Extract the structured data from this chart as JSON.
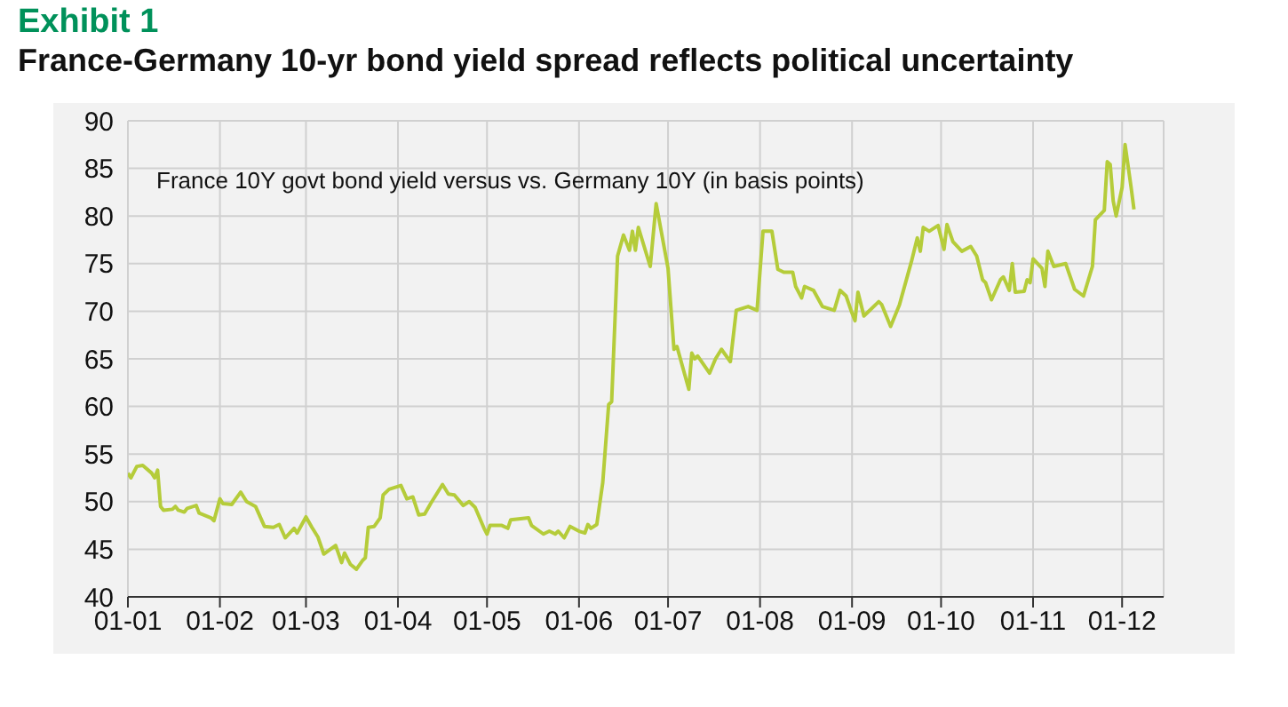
{
  "chart_data": {
    "type": "line",
    "title": "Exhibit 1",
    "subtitle": "France-Germany 10-yr bond yield spread reflects political uncertainty",
    "annotations": [
      "France 10Y govt bond yield versus vs. Germany 10Y (in basis points)"
    ],
    "x": [
      "--01-01",
      "--01-02",
      "--01-04",
      "--01-06",
      "--01-09",
      "--01-10",
      "--01-11",
      "--01-12",
      "--01-13",
      "--01-16",
      "--01-17",
      "--01-18",
      "--01-20",
      "--01-21",
      "--01-24",
      "--01-25",
      "--01-29",
      "--01-30",
      "--02-01",
      "--02-02",
      "--02-05",
      "--02-08",
      "--02-10",
      "--02-13",
      "--02-16",
      "--02-19",
      "--02-21",
      "--02-23",
      "--02-26",
      "--02-27",
      "--03-01",
      "--03-03",
      "--03-05",
      "--03-07",
      "--03-11",
      "--03-13",
      "--03-14",
      "--03-16",
      "--03-18",
      "--03-20",
      "--03-21",
      "--03-22",
      "--03-24",
      "--03-26",
      "--03-27",
      "--03-29",
      "--04-02",
      "--04-04",
      "--04-06",
      "--04-08",
      "--04-10",
      "--04-12",
      "--04-16",
      "--04-18",
      "--04-20",
      "--04-23",
      "--04-25",
      "--04-27",
      "--04-30",
      "--05-01",
      "--05-02",
      "--05-06",
      "--05-08",
      "--05-09",
      "--05-15",
      "--05-16",
      "--05-20",
      "--05-22",
      "--05-24",
      "--05-25",
      "--05-27",
      "--05-29",
      "--06-01",
      "--06-03",
      "--06-04",
      "--06-05",
      "--06-07",
      "--06-09",
      "--06-11",
      "--06-12",
      "--06-14",
      "--06-16",
      "--06-18",
      "--06-19",
      "--06-20",
      "--06-21",
      "--06-25",
      "--06-27",
      "--07-01",
      "--07-03",
      "--07-04",
      "--07-08",
      "--07-09",
      "--07-10",
      "--07-11",
      "--07-15",
      "--07-17",
      "--07-19",
      "--07-22",
      "--07-24",
      "--07-28",
      "--07-31",
      "--08-02",
      "--08-05",
      "--08-07",
      "--08-09",
      "--08-12",
      "--08-13",
      "--08-15",
      "--08-16",
      "--08-19",
      "--08-22",
      "--08-26",
      "--08-28",
      "--08-30",
      "--09-01",
      "--09-02",
      "--09-03",
      "--09-05",
      "--09-10",
      "--09-11",
      "--09-14",
      "--09-17",
      "--09-21",
      "--09-23",
      "--09-24",
      "--09-25",
      "--09-27",
      "--09-30",
      "--10-02",
      "--10-03",
      "--10-05",
      "--10-08",
      "--10-11",
      "--10-13",
      "--10-15",
      "--10-16",
      "--10-18",
      "--10-21",
      "--10-22",
      "--10-24",
      "--10-25",
      "--10-26",
      "--10-29",
      "--10-30",
      "--10-31",
      "--11-01",
      "--11-04",
      "--11-05",
      "--11-06",
      "--11-08",
      "--11-12",
      "--11-15",
      "--11-18",
      "--11-21",
      "--11-22",
      "--11-25",
      "--11-26",
      "--11-27",
      "--11-28",
      "--11-29",
      "--12-01",
      "--12-02",
      "--12-04",
      "--12-05"
    ],
    "series": [
      {
        "color": "#b5cc3a",
        "values": [
          53,
          52.5,
          53.7,
          53.8,
          53,
          52.5,
          53.3,
          49.5,
          49.1,
          49.2,
          49.5,
          49.1,
          48.9,
          49.3,
          49.6,
          48.8,
          48.3,
          48,
          50.3,
          49.8,
          49.7,
          51,
          50,
          49.5,
          47.4,
          47.3,
          47.6,
          46.2,
          47.2,
          46.7,
          48.4,
          47.3,
          46.3,
          44.5,
          45.4,
          43.6,
          44.6,
          43.4,
          42.9,
          43.8,
          44.1,
          47.3,
          47.4,
          48.3,
          50.7,
          51.3,
          51.7,
          50.3,
          50.5,
          48.6,
          48.7,
          49.8,
          51.8,
          50.8,
          50.7,
          49.6,
          50,
          49.4,
          47.2,
          46.6,
          47.5,
          47.5,
          47.2,
          48.1,
          48.3,
          47.5,
          46.6,
          46.9,
          46.6,
          46.9,
          46.2,
          47.4,
          46.9,
          46.7,
          47.6,
          47.2,
          47.6,
          52,
          60.2,
          60.5,
          75.8,
          78,
          76.4,
          78.4,
          76.4,
          78.8,
          74.7,
          81.3,
          74.5,
          66,
          66.3,
          61.8,
          65.6,
          65,
          65.3,
          63.5,
          65,
          66,
          64.7,
          70.1,
          70.5,
          70.1,
          78.4,
          78.4,
          74.4,
          74.1,
          74.1,
          72.6,
          71.4,
          72.6,
          72.2,
          70.5,
          70.1,
          72.2,
          71.6,
          69.8,
          69,
          72,
          69.5,
          71,
          70.7,
          68.4,
          70.7,
          75.2,
          77.7,
          76.3,
          78.8,
          78.4,
          79,
          76.5,
          79.1,
          77.3,
          76.3,
          76.8,
          75.8,
          73.3,
          73,
          71.2,
          73.3,
          73.6,
          72.2,
          75,
          72,
          72.1,
          73.3,
          73,
          75.5,
          74.5,
          72.6,
          76.3,
          74.7,
          75,
          72.3,
          71.6,
          74.7,
          79.6,
          80.6,
          85.7,
          85.4,
          81.6,
          80,
          83,
          87.5,
          83.1,
          80.7
        ]
      }
    ],
    "xlim": [
      "--01-01",
      "--12-15"
    ],
    "xticks": [
      {
        "value": "--01-01",
        "label": "01-01"
      },
      {
        "value": "--02-01",
        "label": "01-02"
      },
      {
        "value": "--03-01",
        "label": "01-03"
      },
      {
        "value": "--04-01",
        "label": "01-04"
      },
      {
        "value": "--05-01",
        "label": "01-05"
      },
      {
        "value": "--06-01",
        "label": "01-06"
      },
      {
        "value": "--07-01",
        "label": "01-07"
      },
      {
        "value": "--08-01",
        "label": "01-08"
      },
      {
        "value": "--09-01",
        "label": "01-09"
      },
      {
        "value": "--10-01",
        "label": "01-10"
      },
      {
        "value": "--11-01",
        "label": "01-11"
      },
      {
        "value": "--12-01",
        "label": "01-12"
      }
    ],
    "ylim": [
      40,
      90
    ],
    "yticks": [
      40,
      45,
      50,
      55,
      60,
      65,
      70,
      75,
      80,
      85,
      90
    ],
    "grid": true,
    "marker": "none",
    "line_style": "solid",
    "legend": false
  }
}
